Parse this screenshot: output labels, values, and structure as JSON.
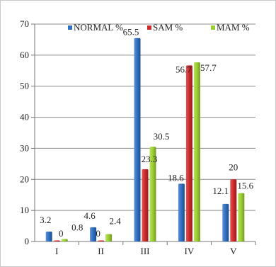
{
  "chart_data": {
    "type": "bar",
    "title": "",
    "xlabel": "",
    "ylabel": "",
    "categories": [
      "I",
      "II",
      "III",
      "IV",
      "V"
    ],
    "ylim": [
      0,
      70
    ],
    "yticks": [
      0,
      10,
      20,
      30,
      40,
      50,
      60,
      70
    ],
    "grid": true,
    "legend_position": "top",
    "series": [
      {
        "name": "NORMAL %",
        "color": "#2f6fbf",
        "values": [
          3.2,
          4.6,
          65.5,
          18.6,
          12.1
        ],
        "labels": [
          "3.2",
          "4.6",
          "65.5",
          "18.6",
          "12.1"
        ]
      },
      {
        "name": "SAM %",
        "color": "#cc2a2a",
        "values": [
          0,
          0,
          23.3,
          56.7,
          20
        ],
        "labels": [
          "0",
          "0",
          "23.3",
          "56.7",
          "20"
        ]
      },
      {
        "name": "MAM %",
        "color": "#9acd32",
        "values": [
          0.8,
          2.4,
          30.5,
          57.7,
          15.6
        ],
        "labels": [
          "0.8",
          "2.4",
          "30.5",
          "57.7",
          "15.6"
        ]
      }
    ]
  }
}
